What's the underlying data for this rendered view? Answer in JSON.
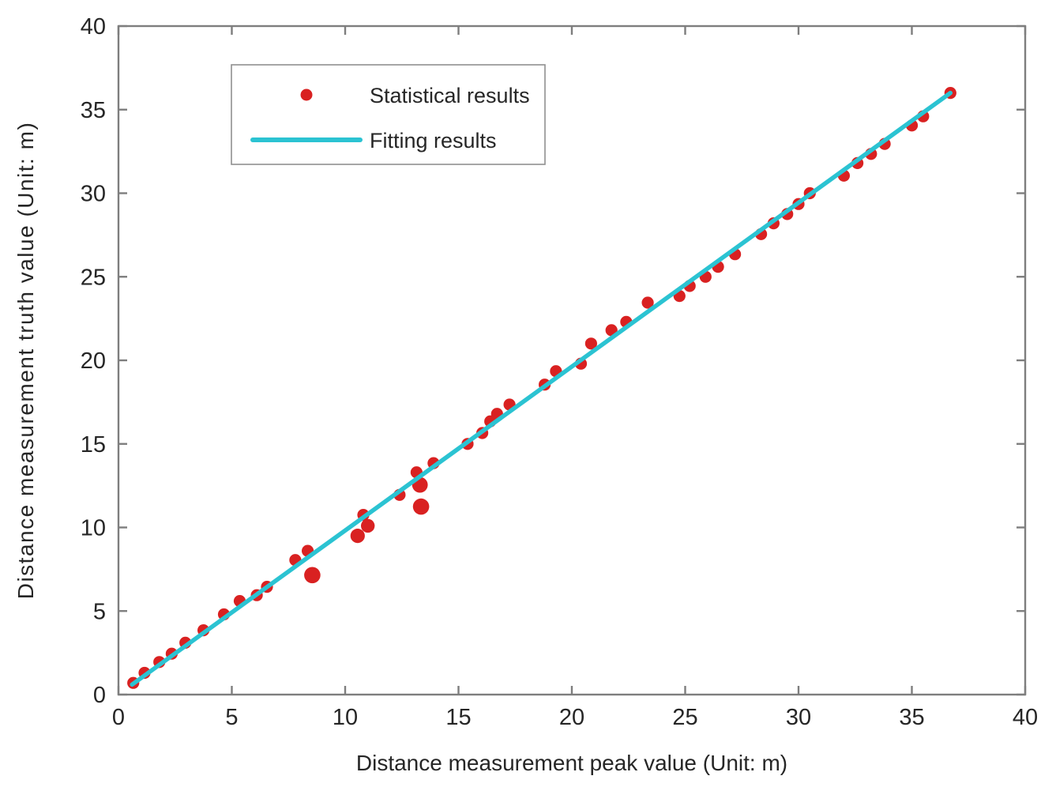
{
  "chart_data": {
    "type": "scatter",
    "title": "",
    "xlabel": "Distance measurement peak value (Unit: m)",
    "ylabel": "Distance measurement truth value (Unit: m)",
    "xlim": [
      0,
      40
    ],
    "ylim": [
      0,
      40
    ],
    "xticks": [
      0,
      5,
      10,
      15,
      20,
      25,
      30,
      35,
      40
    ],
    "yticks": [
      0,
      5,
      10,
      15,
      20,
      25,
      30,
      35,
      40
    ],
    "grid": false,
    "box": true,
    "legend_position": "top-left-inside",
    "colors": {
      "scatter": "#d92121",
      "fit_line": "#2bc3d2",
      "axis": "#7e7e7e",
      "text": "#262626",
      "legend_border": "#8f8f8f",
      "background": "#ffffff"
    },
    "series": [
      {
        "name": "Statistical results",
        "kind": "scatter",
        "points": [
          [
            0.65,
            0.7
          ],
          [
            1.15,
            1.3
          ],
          [
            1.8,
            1.95
          ],
          [
            2.35,
            2.45
          ],
          [
            2.95,
            3.1
          ],
          [
            3.75,
            3.85
          ],
          [
            4.65,
            4.8
          ],
          [
            5.35,
            5.6
          ],
          [
            6.1,
            5.95
          ],
          [
            6.55,
            6.45
          ],
          [
            7.8,
            8.05
          ],
          [
            8.35,
            8.6
          ],
          [
            8.55,
            7.15,
            1.35
          ],
          [
            10.55,
            9.5,
            1.2
          ],
          [
            10.8,
            10.75
          ],
          [
            11.0,
            10.1,
            1.15
          ],
          [
            12.4,
            11.95
          ],
          [
            13.15,
            13.3
          ],
          [
            13.3,
            12.55,
            1.3
          ],
          [
            13.35,
            11.25,
            1.35
          ],
          [
            13.9,
            13.85
          ],
          [
            15.4,
            15.0
          ],
          [
            16.05,
            15.65
          ],
          [
            16.4,
            16.35
          ],
          [
            16.7,
            16.8
          ],
          [
            17.25,
            17.35
          ],
          [
            18.8,
            18.55
          ],
          [
            19.3,
            19.35
          ],
          [
            20.4,
            19.8
          ],
          [
            20.85,
            21.0
          ],
          [
            21.75,
            21.8
          ],
          [
            22.4,
            22.3
          ],
          [
            23.35,
            23.45
          ],
          [
            24.75,
            23.85
          ],
          [
            25.2,
            24.45
          ],
          [
            25.9,
            25.0
          ],
          [
            26.45,
            25.6
          ],
          [
            27.2,
            26.35
          ],
          [
            28.35,
            27.55
          ],
          [
            28.9,
            28.2
          ],
          [
            29.5,
            28.75
          ],
          [
            30.0,
            29.35
          ],
          [
            30.5,
            30.0
          ],
          [
            32.0,
            31.05
          ],
          [
            32.6,
            31.8
          ],
          [
            33.2,
            32.35
          ],
          [
            33.8,
            32.95
          ],
          [
            35.0,
            34.05
          ],
          [
            35.5,
            34.6
          ],
          [
            36.7,
            36.0
          ]
        ]
      },
      {
        "name": "Fitting results",
        "kind": "line",
        "x": [
          0.6,
          36.7
        ],
        "y": [
          0.6,
          36.0
        ]
      }
    ],
    "legend": [
      {
        "label": "Statistical results",
        "marker": "dot",
        "color": "#d92121"
      },
      {
        "label": "Fitting results",
        "marker": "line",
        "color": "#2bc3d2"
      }
    ]
  }
}
